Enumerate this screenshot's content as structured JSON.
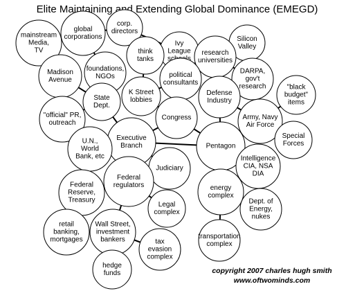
{
  "header": {
    "title": "Elite Maintaining and Extending Global Dominance (EMEGD)"
  },
  "nodes": [
    {
      "label": [
        "mainstream",
        "Media,",
        "TV"
      ]
    },
    {
      "label": [
        "global",
        "corporations"
      ]
    },
    {
      "label": [
        "corp.",
        "directors"
      ]
    },
    {
      "label": [
        "Ivy",
        "League",
        "schools"
      ]
    },
    {
      "label": [
        "Silicon",
        "Valley"
      ]
    },
    {
      "label": [
        "research",
        "universities"
      ]
    },
    {
      "label": [
        "think",
        "tanks"
      ]
    },
    {
      "label": [
        "foundations,",
        "NGOs"
      ]
    },
    {
      "label": [
        "Madison",
        "Avenue"
      ]
    },
    {
      "label": [
        "political",
        "consultants"
      ]
    },
    {
      "label": [
        "DARPA,",
        "gov't",
        "research"
      ]
    },
    {
      "label": [
        "\"black",
        "budget\"",
        "items"
      ]
    },
    {
      "label": [
        "State",
        "Dept."
      ]
    },
    {
      "label": [
        "K Street",
        "lobbies"
      ]
    },
    {
      "label": [
        "Defense",
        "Industry"
      ]
    },
    {
      "label": [
        "\"official\" PR,",
        "outreach"
      ]
    },
    {
      "label": [
        "Congress"
      ]
    },
    {
      "label": [
        "Army, Navy",
        "Air Force"
      ]
    },
    {
      "label": [
        "Executive",
        "Branch"
      ]
    },
    {
      "label": [
        "U.N.,",
        "World",
        "Bank, etc"
      ]
    },
    {
      "label": [
        "Pentagon"
      ]
    },
    {
      "label": [
        "Special",
        "Forces"
      ]
    },
    {
      "label": [
        "Judiciary"
      ]
    },
    {
      "label": [
        "Intelligence",
        "CIA, NSA",
        "DIA"
      ]
    },
    {
      "label": [
        "Federal",
        "regulators"
      ]
    },
    {
      "label": [
        "Federal",
        "Reserve,",
        "Treasury"
      ]
    },
    {
      "label": [
        "energy",
        "complex"
      ]
    },
    {
      "label": [
        "Legal",
        "complex"
      ]
    },
    {
      "label": [
        "Dept. of",
        "Energy,",
        "nukes"
      ]
    },
    {
      "label": [
        "retail",
        "banking,",
        "mortgages"
      ]
    },
    {
      "label": [
        "Wall Street,",
        "investment",
        "bankers"
      ]
    },
    {
      "label": [
        "tax",
        "evasion",
        "complex"
      ]
    },
    {
      "label": [
        "transportation",
        "complex"
      ]
    },
    {
      "label": [
        "hedge",
        "funds"
      ]
    }
  ],
  "footer": {
    "copyright": "copyright 2007 charles hugh smith",
    "url": "www.oftwominds.com"
  }
}
